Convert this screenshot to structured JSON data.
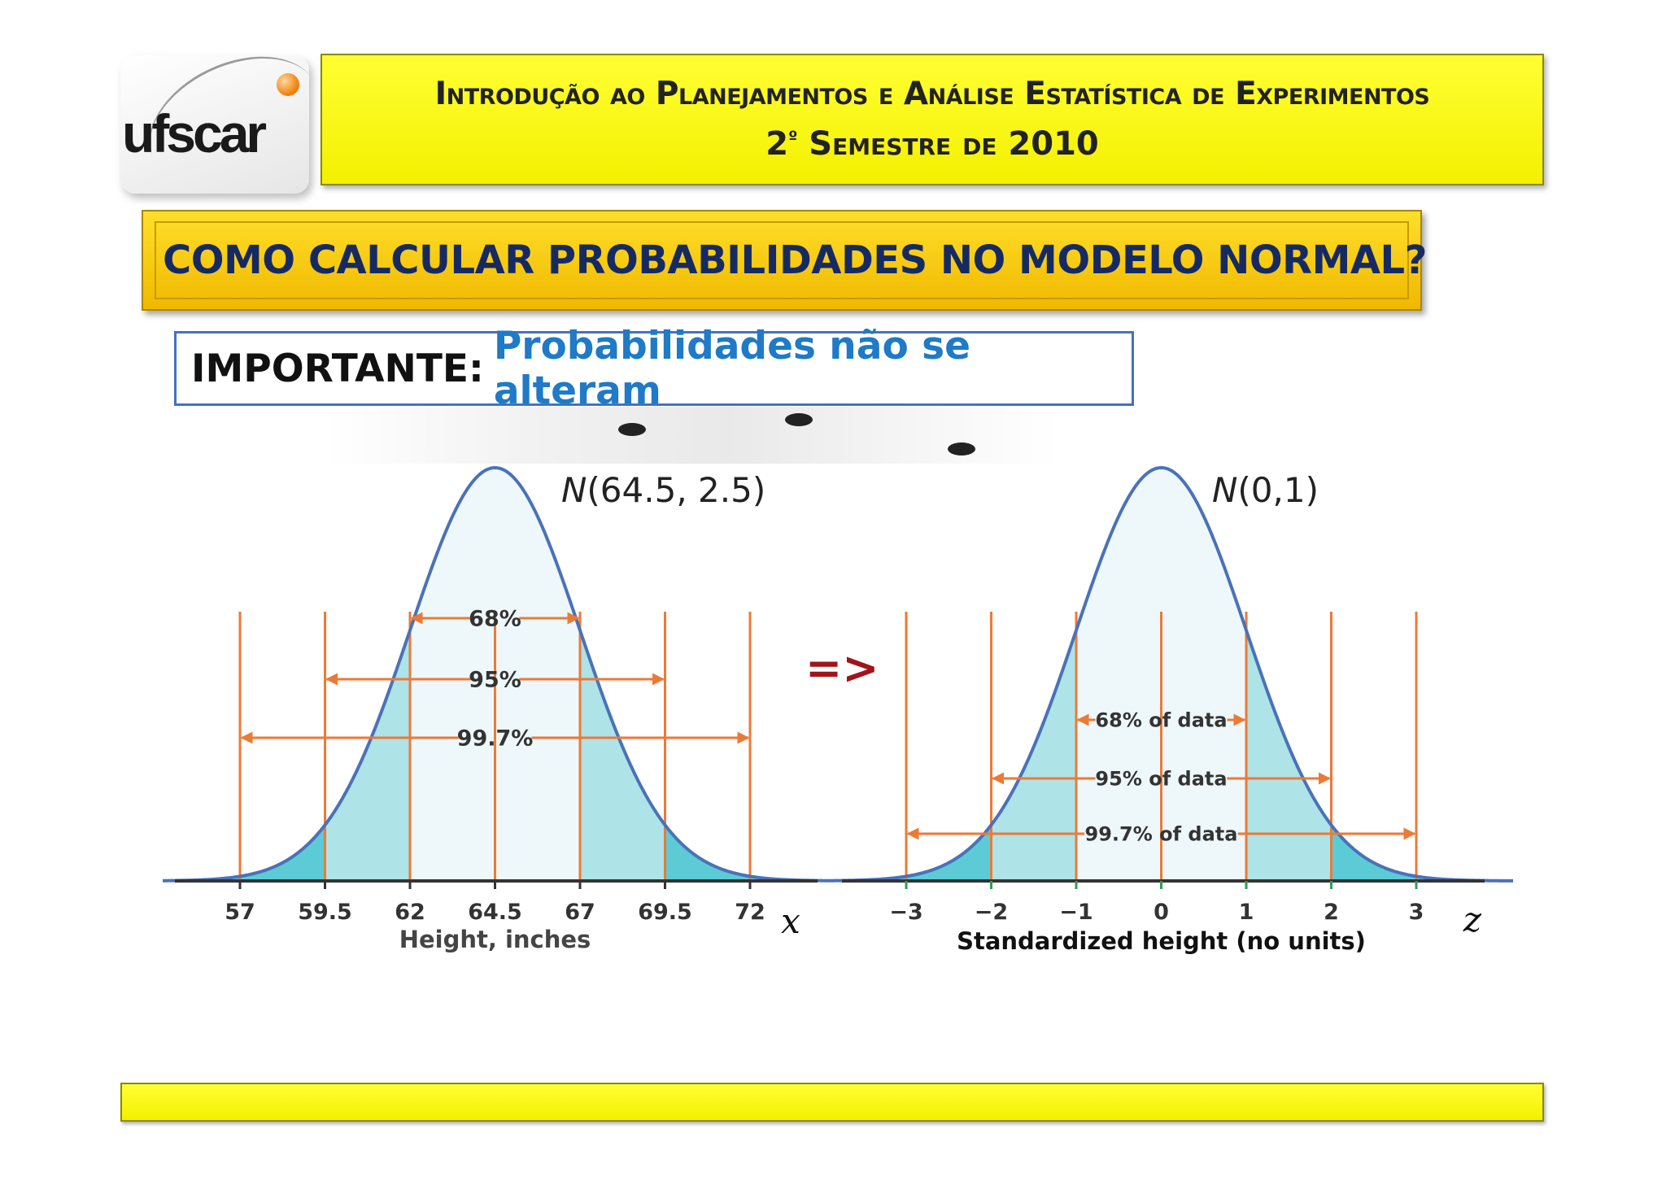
{
  "logo": {
    "text": "ufscar",
    "alt": "ufscar-logo"
  },
  "header": {
    "line1": "Introdução ao Planejamentos e Análise Estatística de Experimentos",
    "line2_prefix": "2",
    "line2_ordinal": "º",
    "line2_suffix": " Semestre de 2010"
  },
  "title": "COMO CALCULAR PROBABILIDADES NO MODELO NORMAL?",
  "important": {
    "label": "IMPORTANTE:",
    "text": "Probabilidades não se alteram"
  },
  "transform_symbol": "=>",
  "colors": {
    "curve": "#4a72b8",
    "fill_light": "#eef8fb",
    "fill_mid": "#aee3e8",
    "fill_dark": "#5ccbd6",
    "lines": "#ec7a37",
    "axis": "#333333"
  },
  "chart_data": [
    {
      "type": "area",
      "title": "N(64.5, 2.5)",
      "title_italic": "N",
      "title_rest": "(64.5, 2.5)",
      "xlabel": "Height, inches",
      "axis_symbol": "x",
      "mean": 64.5,
      "sd": 2.5,
      "ticks": [
        "57",
        "59.5",
        "62",
        "64.5",
        "67",
        "69.5",
        "72"
      ],
      "tick_values": [
        57,
        59.5,
        62,
        64.5,
        67,
        69.5,
        72
      ],
      "intervals": [
        {
          "label": "68%",
          "from": 62,
          "to": 67
        },
        {
          "label": "95%",
          "from": 59.5,
          "to": 69.5
        },
        {
          "label": "99.7%",
          "from": 57,
          "to": 72
        }
      ]
    },
    {
      "type": "area",
      "title": "N(0,1)",
      "title_italic": "N",
      "title_rest": "(0,1)",
      "xlabel": "Standardized height (no units)",
      "axis_symbol": "z",
      "mean": 0,
      "sd": 1,
      "ticks": [
        "−3",
        "−2",
        "−1",
        "0",
        "1",
        "2",
        "3"
      ],
      "tick_values": [
        -3,
        -2,
        -1,
        0,
        1,
        2,
        3
      ],
      "intervals": [
        {
          "label": "68% of data",
          "from": -1,
          "to": 1
        },
        {
          "label": "95% of data",
          "from": -2,
          "to": 2
        },
        {
          "label": "99.7% of data",
          "from": -3,
          "to": 3
        }
      ]
    }
  ]
}
